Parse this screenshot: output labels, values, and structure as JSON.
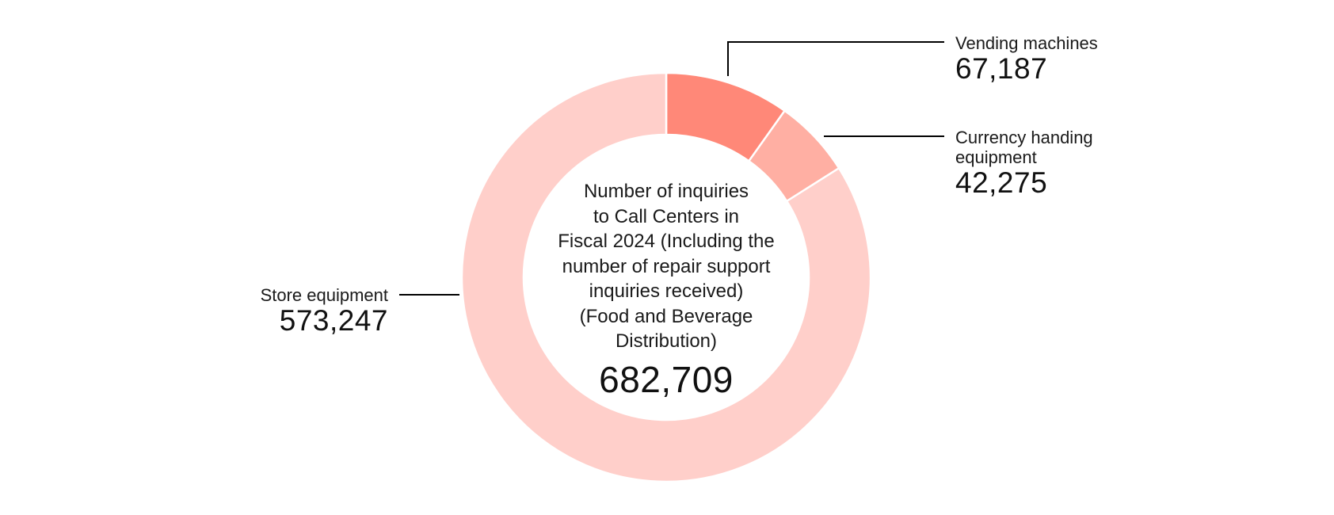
{
  "chart_data": {
    "type": "pie",
    "subtype": "donut",
    "title": "Number of inquiries to Call Centers in Fiscal 2024 (Including the number of repair support inquiries received) (Food and Beverage Distribution)",
    "total": 682709,
    "total_label": "682,709",
    "categories": [
      "Vending machines",
      "Currency handing equipment",
      "Store equipment"
    ],
    "values": [
      67187,
      42275,
      573247
    ],
    "value_labels": [
      "67,187",
      "42,275",
      "573,247"
    ],
    "colors": [
      "#FF8878",
      "#FFAFA3",
      "#FFCFCA"
    ],
    "start_angle_deg": 0,
    "direction": "clockwise",
    "legend": "none (leader-line labels)"
  },
  "center": {
    "title_lines": [
      "Number of inquiries",
      "to Call Centers in",
      "Fiscal 2024 (Including the",
      "number of repair support",
      "inquiries received)",
      "(Food and Beverage",
      "Distribution)"
    ],
    "total": "682,709"
  },
  "labels": {
    "vending": {
      "name": "Vending machines",
      "value": "67,187"
    },
    "currency": {
      "name_line1": "Currency handing",
      "name_line2": "equipment",
      "value": "42,275"
    },
    "store": {
      "name": "Store equipment",
      "value": "573,247"
    }
  },
  "colors": {
    "vending": "#FF8878",
    "currency": "#FFAFA3",
    "store": "#FFCFCA",
    "leader": "#000000"
  }
}
